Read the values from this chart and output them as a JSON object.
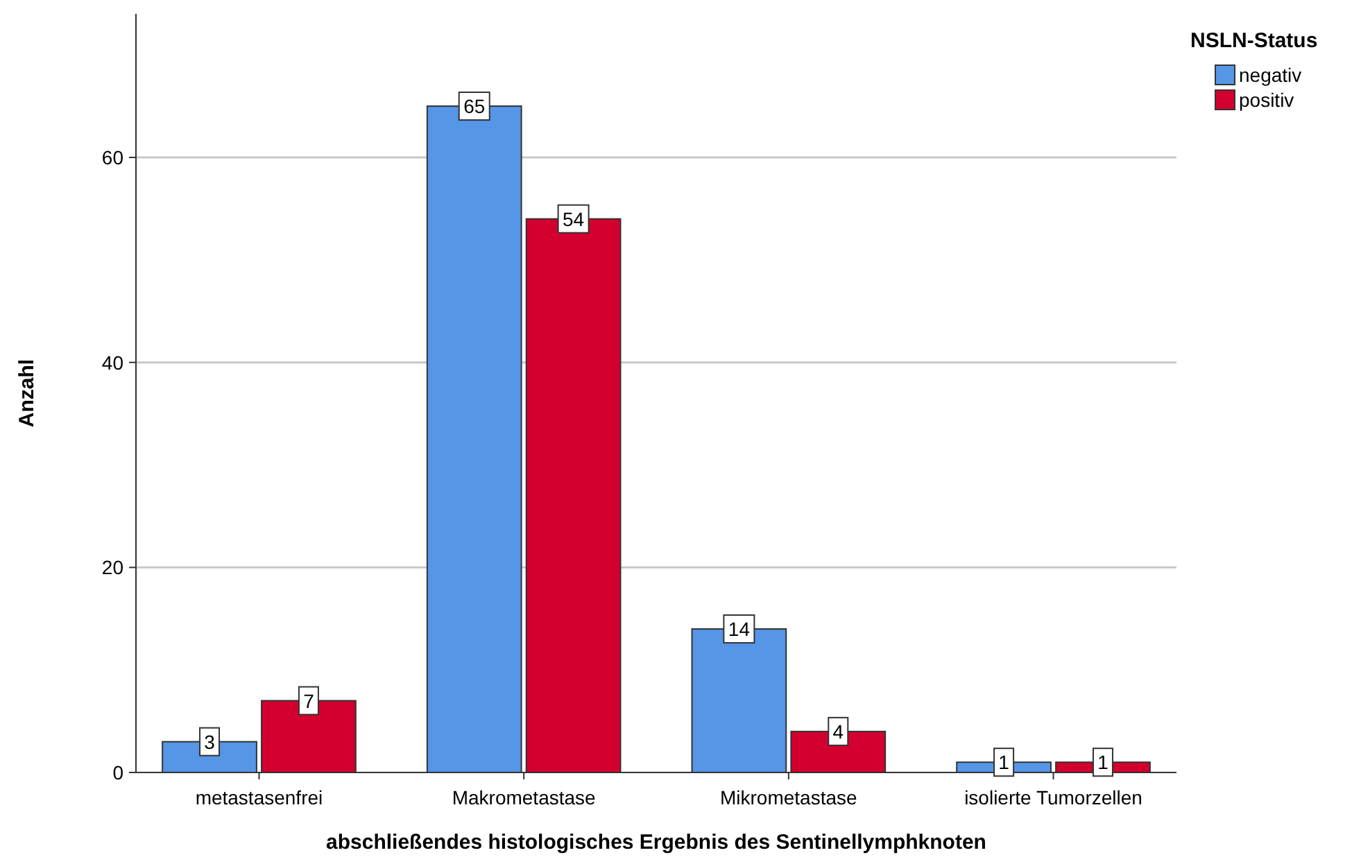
{
  "chart_data": {
    "type": "bar",
    "xlabel": "abschließendes histologisches Ergebnis des Sentinellymphknoten",
    "ylabel": "Anzahl",
    "legend_title": "NSLN-Status",
    "categories": [
      "metastasenfrei",
      "Makrometastase",
      "Mikrometastase",
      "isolierte Tumorzellen"
    ],
    "series": [
      {
        "name": "negativ",
        "color": "#5596e6",
        "values": [
          3,
          65,
          14,
          1
        ]
      },
      {
        "name": "positiv",
        "color": "#d3002f",
        "values": [
          7,
          54,
          4,
          1
        ]
      }
    ],
    "ylim": [
      0,
      74
    ],
    "yticks": [
      0,
      20,
      40,
      60
    ],
    "grid": "y",
    "legend": "top right",
    "data_labels": true
  }
}
